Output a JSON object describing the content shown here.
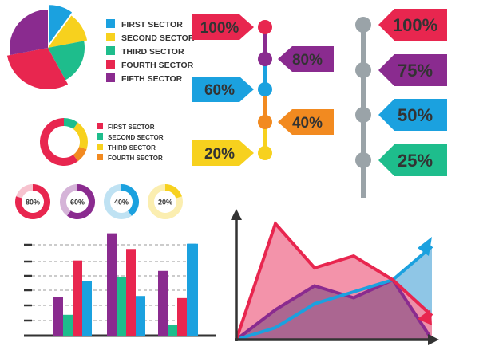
{
  "colors": {
    "red": "#e8264f",
    "yellow": "#f7d11e",
    "blue": "#1ba1df",
    "green": "#1ebd8c",
    "purple": "#8a2b8f",
    "orange": "#f28a20",
    "gray": "#9aa3a8",
    "pink": "#f28da5",
    "mauve": "#a8648f",
    "lightblue": "#8fc6e6",
    "dark": "#333333"
  },
  "chart_data": [
    {
      "type": "pie",
      "labels": [
        "FIRST SECTOR",
        "SECOND SECTOR",
        "THIRD SECTOR",
        "FOURTH SECTOR",
        "FIFTH SECTOR"
      ],
      "colors": [
        "#1ba1df",
        "#f7d11e",
        "#1ebd8c",
        "#e8264f",
        "#8a2b8f"
      ],
      "values": [
        10,
        12,
        20,
        30,
        28
      ]
    },
    {
      "type": "pie",
      "style": "donut",
      "labels": [
        "FIRST SECTOR",
        "SECOND SECTOR",
        "THIRD SECTOR",
        "FOURTH SECTOR"
      ],
      "colors": [
        "#e8264f",
        "#1ebd8c",
        "#f7d11e",
        "#f28a20"
      ],
      "values": [
        60,
        10,
        20,
        10
      ]
    },
    {
      "type": "pie",
      "style": "progress-rings",
      "labels": [
        "80%",
        "60%",
        "40%",
        "20%"
      ],
      "values": [
        80,
        60,
        40,
        20
      ],
      "colors": [
        "#e8264f",
        "#8a2b8f",
        "#1ba1df",
        "#f7d11e"
      ]
    },
    {
      "type": "bar",
      "style": "timeline",
      "labels": [
        "100%",
        "80%",
        "60%",
        "40%",
        "20%"
      ],
      "values": [
        100,
        80,
        60,
        40,
        20
      ],
      "colors": [
        "#e8264f",
        "#8a2b8f",
        "#1ba1df",
        "#f28a20",
        "#f7d11e"
      ],
      "sides": [
        "left",
        "right",
        "left",
        "right",
        "left"
      ]
    },
    {
      "type": "bar",
      "style": "timeline",
      "labels": [
        "100%",
        "75%",
        "50%",
        "25%"
      ],
      "values": [
        100,
        75,
        50,
        25
      ],
      "colors": [
        "#e8264f",
        "#8a2b8f",
        "#1ba1df",
        "#1ebd8c"
      ]
    },
    {
      "type": "bar",
      "ylim": [
        0,
        100
      ],
      "series": [
        {
          "color": "#8a2b8f",
          "values": [
            37,
            98,
            62
          ]
        },
        {
          "color": "#1ebd8c",
          "values": [
            20,
            56,
            10
          ]
        },
        {
          "color": "#e8264f",
          "values": [
            72,
            83,
            36
          ]
        },
        {
          "color": "#1ba1df",
          "values": [
            52,
            38,
            88
          ]
        }
      ],
      "categories": [
        "",
        "",
        ""
      ]
    },
    {
      "type": "area",
      "ylim": [
        0,
        100
      ],
      "series": [
        {
          "color": "#e8264f",
          "values": [
            0,
            97,
            60,
            70,
            50,
            20
          ]
        },
        {
          "color": "#8a2b8f",
          "values": [
            0,
            25,
            45,
            35,
            50,
            0
          ]
        },
        {
          "color": "#1ba1df",
          "values": [
            0,
            10,
            30,
            40,
            50,
            78
          ]
        }
      ],
      "x": [
        0,
        1,
        2,
        3,
        4,
        5
      ]
    }
  ]
}
